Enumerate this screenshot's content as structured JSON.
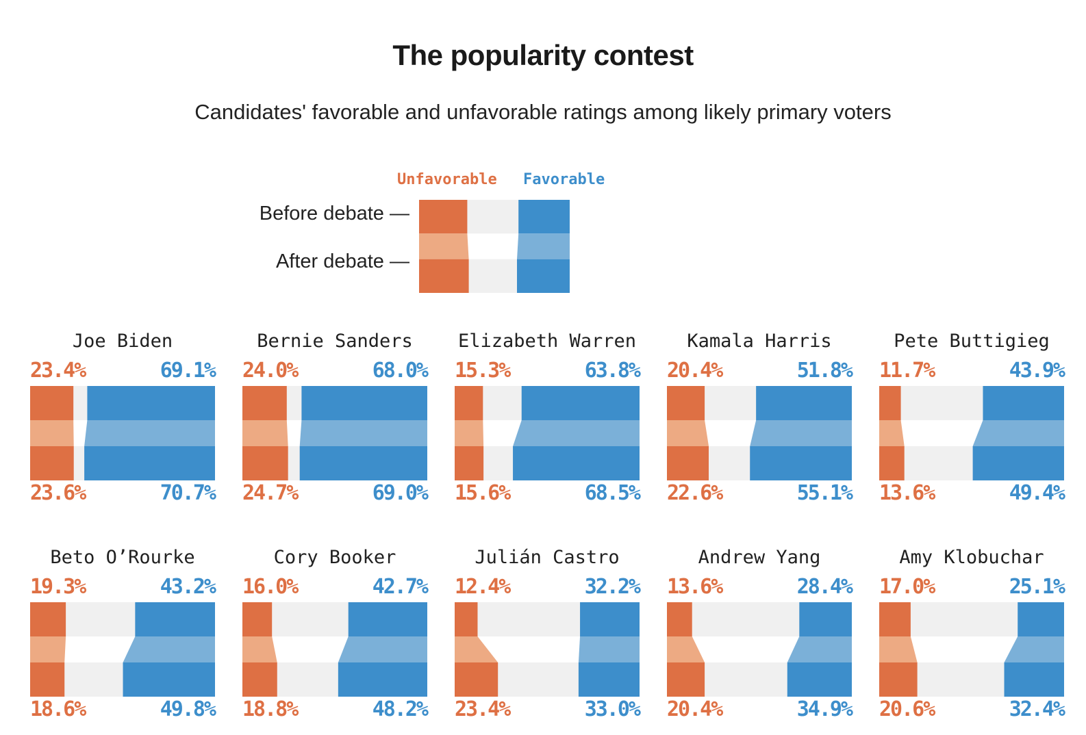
{
  "title": "The popularity contest",
  "subtitle": "Candidates' favorable and unfavorable ratings among likely primary voters",
  "legend": {
    "unfavorable_label": "Unfavorable",
    "favorable_label": "Favorable",
    "before_label": "Before debate —",
    "after_label": "After debate —",
    "example_bars": {
      "unfavorable_before": 32,
      "favorable_before": 34,
      "unfavorable_after": 33,
      "favorable_after": 35
    }
  },
  "colors": {
    "unfavorable": "#de7044",
    "unfavorable_light": "#edaa83",
    "favorable": "#3d8ecb",
    "favorable_light": "#7bb0d8",
    "band_background": "#f0f0f0",
    "text_dark": "#212121"
  },
  "chart_data": {
    "type": "bar",
    "title": "The popularity contest",
    "subtitle": "Candidates' favorable and unfavorable ratings among likely primary voters",
    "unit": "percent",
    "xlim": [
      0,
      100
    ],
    "series": [
      "Unfavorable",
      "Favorable"
    ],
    "timepoints": [
      "Before debate",
      "After debate"
    ],
    "layout": "10 small multiples, 2 rows x 5 columns; unfavorable bar anchored left, favorable bar anchored right, lighter slanted band shows before-to-after transition",
    "candidates": [
      {
        "name": "Joe Biden",
        "unfavorable_before": 23.4,
        "favorable_before": 69.1,
        "unfavorable_after": 23.6,
        "favorable_after": 70.7
      },
      {
        "name": "Bernie Sanders",
        "unfavorable_before": 24.0,
        "favorable_before": 68.0,
        "unfavorable_after": 24.7,
        "favorable_after": 69.0
      },
      {
        "name": "Elizabeth Warren",
        "unfavorable_before": 15.3,
        "favorable_before": 63.8,
        "unfavorable_after": 15.6,
        "favorable_after": 68.5
      },
      {
        "name": "Kamala Harris",
        "unfavorable_before": 20.4,
        "favorable_before": 51.8,
        "unfavorable_after": 22.6,
        "favorable_after": 55.1
      },
      {
        "name": "Pete Buttigieg",
        "unfavorable_before": 11.7,
        "favorable_before": 43.9,
        "unfavorable_after": 13.6,
        "favorable_after": 49.4
      },
      {
        "name": "Beto O’Rourke",
        "unfavorable_before": 19.3,
        "favorable_before": 43.2,
        "unfavorable_after": 18.6,
        "favorable_after": 49.8
      },
      {
        "name": "Cory Booker",
        "unfavorable_before": 16.0,
        "favorable_before": 42.7,
        "unfavorable_after": 18.8,
        "favorable_after": 48.2
      },
      {
        "name": "Julián Castro",
        "unfavorable_before": 12.4,
        "favorable_before": 32.2,
        "unfavorable_after": 23.4,
        "favorable_after": 33.0
      },
      {
        "name": "Andrew Yang",
        "unfavorable_before": 13.6,
        "favorable_before": 28.4,
        "unfavorable_after": 20.4,
        "favorable_after": 34.9
      },
      {
        "name": "Amy Klobuchar",
        "unfavorable_before": 17.0,
        "favorable_before": 25.1,
        "unfavorable_after": 20.6,
        "favorable_after": 32.4
      }
    ]
  }
}
